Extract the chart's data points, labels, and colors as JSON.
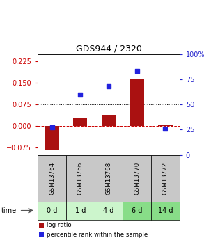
{
  "title": "GDS944 / 2320",
  "samples": [
    "GSM13764",
    "GSM13766",
    "GSM13768",
    "GSM13770",
    "GSM13772"
  ],
  "time_labels": [
    "0 d",
    "1 d",
    "4 d",
    "6 d",
    "14 d"
  ],
  "log_ratios": [
    -0.085,
    0.028,
    0.038,
    0.165,
    0.002
  ],
  "percentile_ranks": [
    27,
    60,
    68,
    83,
    26
  ],
  "left_ylim": [
    -0.1,
    0.25
  ],
  "right_ylim": [
    0,
    100
  ],
  "left_yticks": [
    -0.075,
    0,
    0.075,
    0.15,
    0.225
  ],
  "right_yticks": [
    0,
    25,
    50,
    75,
    100
  ],
  "hlines": [
    0.075,
    0.15
  ],
  "bar_color": "#aa1111",
  "dot_color": "#2222dd",
  "bg_plot": "#ffffff",
  "bg_gsm": "#c8c8c8",
  "bg_time_0": "#ccf5cc",
  "bg_time_1": "#ccf5cc",
  "bg_time_2": "#ccf5cc",
  "bg_time_3": "#88dd88",
  "bg_time_4": "#88dd88",
  "title_color": "#000000",
  "left_tick_color": "#cc0000",
  "right_tick_color": "#2222cc",
  "zero_line_color": "#cc0000",
  "legend_bar_label": "log ratio",
  "legend_dot_label": "percentile rank within the sample"
}
